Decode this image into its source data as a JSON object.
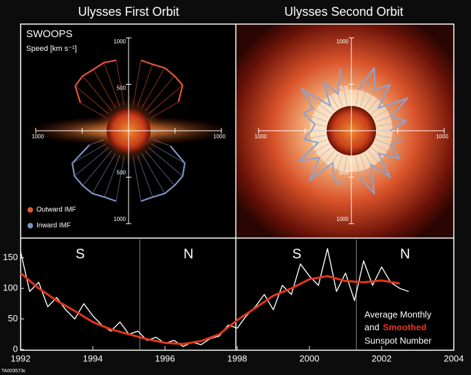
{
  "figure_id": "TA003573c",
  "chart_data": [
    {
      "type": "polar",
      "title": "Ulysses First Orbit",
      "annotation": "SWOOPS",
      "r_label": "Speed [km s⁻¹]",
      "rlim": [
        0,
        1000
      ],
      "rticks": [
        500,
        1000
      ],
      "series": [
        {
          "name": "Outward IMF",
          "color": "#e8543a",
          "theta": [
            30,
            40,
            50,
            60,
            70,
            80,
            90,
            100,
            110,
            120,
            130,
            140,
            150
          ],
          "values": [
            620,
            760,
            770,
            780,
            760,
            770,
            null,
            770,
            780,
            760,
            770,
            750,
            600
          ]
        },
        {
          "name": "Inward IMF",
          "color": "#7f94c4",
          "theta": [
            200,
            210,
            220,
            230,
            240,
            250,
            260,
            270,
            280,
            290,
            300,
            310,
            320,
            330,
            340
          ],
          "values": [
            450,
            700,
            760,
            770,
            780,
            760,
            770,
            null,
            770,
            760,
            780,
            770,
            760,
            700,
            480
          ]
        }
      ]
    },
    {
      "type": "polar",
      "title": "Ulysses Second Orbit",
      "rlim": [
        0,
        1000
      ],
      "rticks": [
        500,
        1000
      ],
      "series": [
        {
          "color": "#8fa3cc",
          "theta": [
            0,
            10,
            20,
            30,
            40,
            50,
            60,
            70,
            80,
            90,
            100,
            110,
            120,
            130,
            140,
            150,
            160,
            170,
            180,
            190,
            200,
            210,
            220,
            230,
            240,
            250,
            260,
            270,
            280,
            290,
            300,
            310,
            320,
            330,
            340,
            350
          ],
          "values": [
            420,
            600,
            450,
            700,
            380,
            650,
            500,
            720,
            450,
            null,
            680,
            420,
            600,
            350,
            700,
            480,
            550,
            400,
            430,
            520,
            380,
            650,
            450,
            700,
            400,
            550,
            600,
            null,
            500,
            720,
            420,
            650,
            380,
            600,
            450,
            550
          ]
        }
      ]
    },
    {
      "type": "line",
      "xlim": [
        1992,
        2004
      ],
      "xticks": [
        1992,
        1994,
        1996,
        1998,
        2000,
        2002,
        2004
      ],
      "ylim": [
        0,
        180
      ],
      "yticks": [
        0,
        50,
        100,
        150
      ],
      "vlines": [
        1995.3,
        2001.3
      ],
      "hemisphere_labels": [
        "S",
        "N",
        "S",
        "N"
      ],
      "annotations": [
        "and",
        "Sunspot Number"
      ],
      "series": [
        {
          "name": "Average Monthly",
          "color": "#ffffff",
          "x": [
            1992.0,
            1992.25,
            1992.5,
            1992.75,
            1993.0,
            1993.25,
            1993.5,
            1993.75,
            1994.0,
            1994.25,
            1994.5,
            1994.75,
            1995.0,
            1995.25,
            1995.5,
            1995.75,
            1996.0,
            1996.25,
            1996.5,
            1996.75,
            1997.0,
            1997.25,
            1997.5,
            1997.75,
            1998.0,
            1998.25,
            1998.5,
            1998.75,
            1999.0,
            1999.25,
            1999.5,
            1999.75,
            2000.0,
            2000.25,
            2000.5,
            2000.75,
            2001.0,
            2001.25,
            2001.5,
            2001.75,
            2002.0,
            2002.25,
            2002.5,
            2002.75
          ],
          "values": [
            160,
            95,
            110,
            70,
            85,
            65,
            50,
            75,
            55,
            40,
            30,
            45,
            25,
            30,
            15,
            20,
            10,
            15,
            5,
            12,
            8,
            18,
            22,
            40,
            35,
            55,
            70,
            90,
            65,
            105,
            90,
            140,
            120,
            105,
            165,
            95,
            125,
            80,
            145,
            105,
            135,
            110,
            100,
            95
          ]
        },
        {
          "name": "Smoothed",
          "color": "#e8341c",
          "x": [
            1992.0,
            1992.5,
            1993.0,
            1993.5,
            1994.0,
            1994.5,
            1995.0,
            1995.5,
            1996.0,
            1996.5,
            1997.0,
            1997.5,
            1998.0,
            1998.5,
            1999.0,
            1999.5,
            2000.0,
            2000.5,
            2001.0,
            2001.5,
            2002.0,
            2002.5
          ],
          "values": [
            125,
            100,
            80,
            63,
            45,
            33,
            25,
            17,
            11,
            9,
            14,
            25,
            48,
            68,
            88,
            100,
            115,
            120,
            112,
            110,
            113,
            108
          ]
        }
      ]
    }
  ]
}
